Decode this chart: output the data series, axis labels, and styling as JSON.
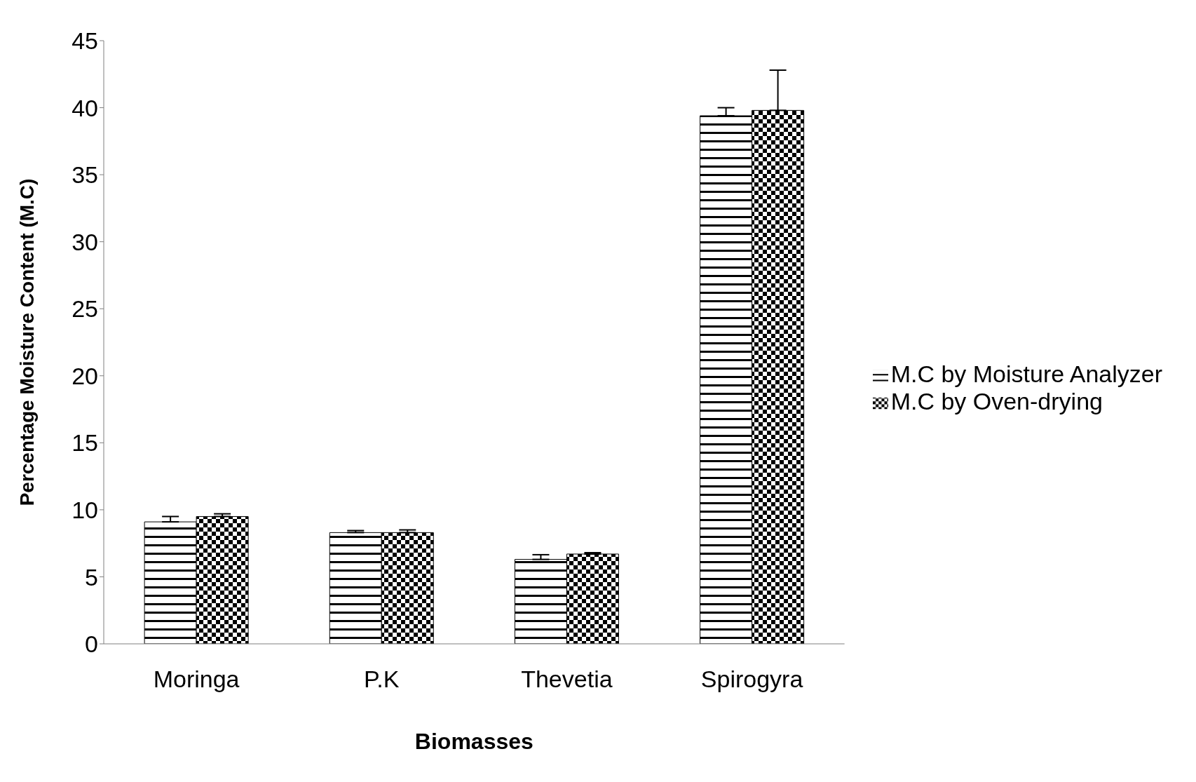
{
  "chart_data": {
    "type": "bar",
    "xlabel": "Biomasses",
    "ylabel": "Percentage Moisture Content (M.C)",
    "categories": [
      "Moringa",
      "P.K",
      "Thevetia",
      "Spirogyra"
    ],
    "series": [
      {
        "name": "M.C by Moisture Analyzer",
        "color": "#000000",
        "values": [
          9.1,
          8.3,
          6.3,
          39.4
        ],
        "errors": [
          0.4,
          0.15,
          0.35,
          0.6
        ]
      },
      {
        "name": "M.C by Oven-drying",
        "color": "#000000",
        "values": [
          9.5,
          8.3,
          6.7,
          39.8
        ],
        "errors": [
          0.2,
          0.2,
          0.1,
          3.0
        ]
      }
    ],
    "ylim": [
      0,
      45
    ],
    "yticks": [
      0,
      5,
      10,
      15,
      20,
      25,
      30,
      35,
      40,
      45
    ],
    "grid": false,
    "legend": "right"
  }
}
